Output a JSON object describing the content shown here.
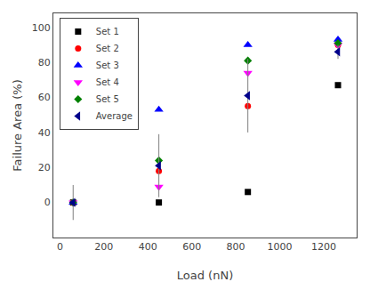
{
  "chart_data": {
    "type": "scatter",
    "xlabel": "Load (nN)",
    "ylabel": "Failure Area (%)",
    "xlim": [
      -30,
      1350
    ],
    "ylim": [
      -20,
      108
    ],
    "xticks": [
      0,
      200,
      400,
      600,
      800,
      1000,
      1200
    ],
    "yticks": [
      0,
      20,
      40,
      60,
      80,
      100
    ],
    "grid": false,
    "legend": "upper left",
    "x": [
      60,
      450,
      855,
      1265
    ],
    "series": [
      {
        "name": "Set 1",
        "color": "black",
        "marker": "square",
        "values": [
          0,
          0,
          6,
          67
        ]
      },
      {
        "name": "Set 2",
        "color": "red",
        "marker": "circle",
        "values": [
          0,
          18,
          55,
          90
        ]
      },
      {
        "name": "Set 3",
        "color": "blue",
        "marker": "triangle-up",
        "values": [
          0,
          53,
          90,
          93
        ]
      },
      {
        "name": "Set 4",
        "color": "magenta",
        "marker": "triangle-down",
        "values": [
          0,
          9,
          74,
          90
        ]
      },
      {
        "name": "Set 5",
        "color": "#008000",
        "marker": "diamond",
        "values": [
          0,
          24,
          81,
          91
        ]
      },
      {
        "name": "Average",
        "color": "#00008B",
        "marker": "triangle-left",
        "values": [
          0,
          21,
          61,
          86
        ],
        "yerr": [
          10,
          18,
          21,
          4
        ]
      }
    ]
  }
}
